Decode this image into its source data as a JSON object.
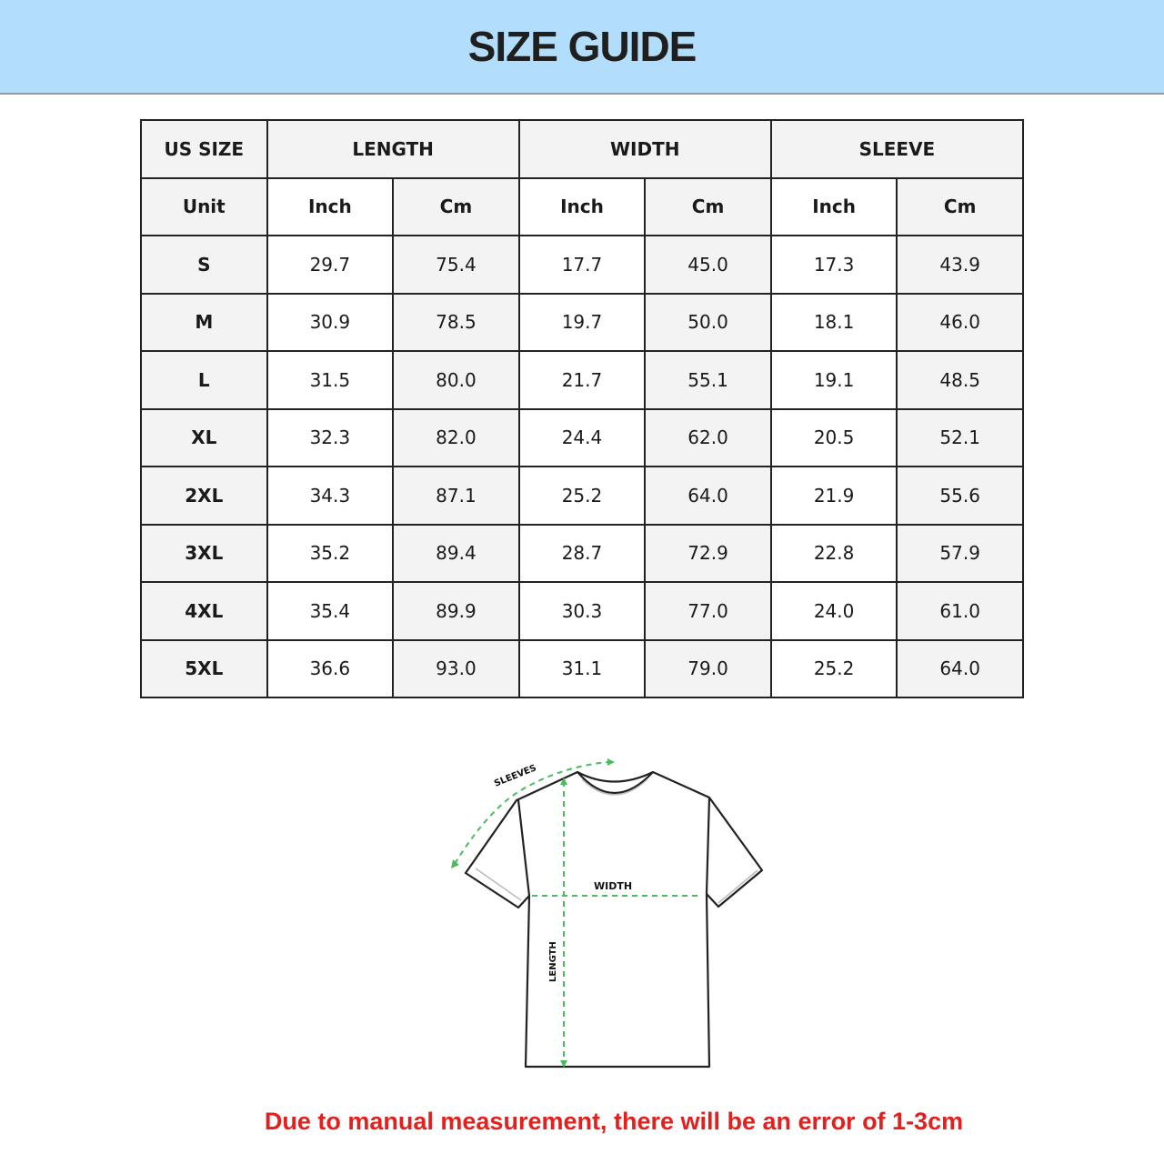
{
  "header": {
    "title": "SIZE GUIDE",
    "background_color": "#b2ddfb"
  },
  "table": {
    "group_headers": [
      "US SIZE",
      "LENGTH",
      "WIDTH",
      "SLEEVE"
    ],
    "unit_row": [
      "Unit",
      "Inch",
      "Cm",
      "Inch",
      "Cm",
      "Inch",
      "Cm"
    ],
    "rows": [
      [
        "S",
        "29.7",
        "75.4",
        "17.7",
        "45.0",
        "17.3",
        "43.9"
      ],
      [
        "M",
        "30.9",
        "78.5",
        "19.7",
        "50.0",
        "18.1",
        "46.0"
      ],
      [
        "L",
        "31.5",
        "80.0",
        "21.7",
        "55.1",
        "19.1",
        "48.5"
      ],
      [
        "XL",
        "32.3",
        "82.0",
        "24.4",
        "62.0",
        "20.5",
        "52.1"
      ],
      [
        "2XL",
        "34.3",
        "87.1",
        "25.2",
        "64.0",
        "21.9",
        "55.6"
      ],
      [
        "3XL",
        "35.2",
        "89.4",
        "28.7",
        "72.9",
        "22.8",
        "57.9"
      ],
      [
        "4XL",
        "35.4",
        "89.9",
        "30.3",
        "77.0",
        "24.0",
        "61.0"
      ],
      [
        "5XL",
        "36.6",
        "93.0",
        "31.1",
        "79.0",
        "25.2",
        "64.0"
      ]
    ]
  },
  "diagram": {
    "sleeves_label": "SLEEVES",
    "width_label": "WIDTH",
    "length_label": "LENGTH",
    "arrow_color": "#4cbb5c"
  },
  "footer": {
    "note": "Due to manual measurement, there will be an error of 1-3cm",
    "note_color": "#e3201e"
  }
}
